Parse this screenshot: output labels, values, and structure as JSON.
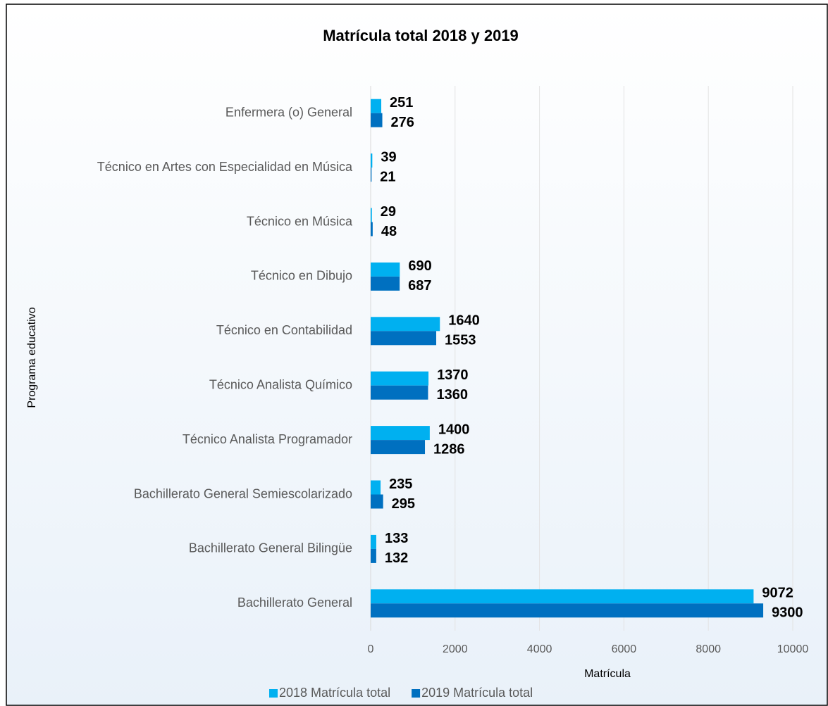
{
  "chart_data": {
    "type": "bar",
    "orientation": "horizontal",
    "title": "Matrícula total 2018 y 2019",
    "xlabel": "Matrícula",
    "ylabel": "Programa educativo",
    "categories": [
      "Enfermera (o) General",
      "Técnico en Artes con Especialidad en Música",
      "Técnico en Música",
      "Técnico en Dibujo",
      "Técnico en Contabilidad",
      "Técnico Analista Químico",
      "Técnico Analista Programador",
      "Bachillerato General Semiescolarizado",
      "Bachillerato General Bilingüe",
      "Bachillerato General"
    ],
    "series": [
      {
        "name": "2018 Matrícula total",
        "color": "#00b0f0",
        "values": [
          251,
          39,
          29,
          690,
          1640,
          1370,
          1400,
          235,
          133,
          9072
        ]
      },
      {
        "name": "2019 Matrícula total",
        "color": "#0070c0",
        "values": [
          276,
          21,
          48,
          687,
          1553,
          1360,
          1286,
          295,
          132,
          9300
        ]
      }
    ],
    "xlim": [
      0,
      10000
    ],
    "xticks": [
      0,
      2000,
      4000,
      6000,
      8000,
      10000
    ],
    "grid": true,
    "legend": "bottom"
  }
}
